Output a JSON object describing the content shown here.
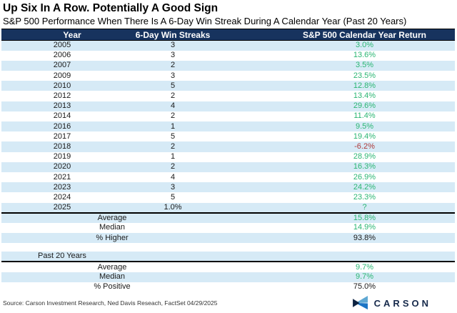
{
  "title": "Up Six In A Row. Potentially A Good Sign",
  "subtitle": "S&P 500 Performance When There Is A 6-Day Win Streak During A Calendar Year (Past 20 Years)",
  "table": {
    "columns": [
      "Year",
      "6-Day Win Streaks",
      "S&P 500 Calendar Year Return"
    ],
    "rows": [
      {
        "year": "2005",
        "streaks": "3",
        "ret": "3.0%",
        "color": "green",
        "shade": true
      },
      {
        "year": "2006",
        "streaks": "3",
        "ret": "13.6%",
        "color": "green",
        "shade": false
      },
      {
        "year": "2007",
        "streaks": "2",
        "ret": "3.5%",
        "color": "green",
        "shade": true
      },
      {
        "year": "2009",
        "streaks": "3",
        "ret": "23.5%",
        "color": "green",
        "shade": false
      },
      {
        "year": "2010",
        "streaks": "5",
        "ret": "12.8%",
        "color": "green",
        "shade": true
      },
      {
        "year": "2012",
        "streaks": "2",
        "ret": "13.4%",
        "color": "green",
        "shade": false
      },
      {
        "year": "2013",
        "streaks": "4",
        "ret": "29.6%",
        "color": "green",
        "shade": true
      },
      {
        "year": "2014",
        "streaks": "2",
        "ret": "11.4%",
        "color": "green",
        "shade": false
      },
      {
        "year": "2016",
        "streaks": "1",
        "ret": "9.5%",
        "color": "green",
        "shade": true
      },
      {
        "year": "2017",
        "streaks": "5",
        "ret": "19.4%",
        "color": "green",
        "shade": false
      },
      {
        "year": "2018",
        "streaks": "2",
        "ret": "-6.2%",
        "color": "red",
        "shade": true
      },
      {
        "year": "2019",
        "streaks": "1",
        "ret": "28.9%",
        "color": "green",
        "shade": false
      },
      {
        "year": "2020",
        "streaks": "2",
        "ret": "16.3%",
        "color": "green",
        "shade": true
      },
      {
        "year": "2021",
        "streaks": "4",
        "ret": "26.9%",
        "color": "green",
        "shade": false
      },
      {
        "year": "2023",
        "streaks": "3",
        "ret": "24.2%",
        "color": "green",
        "shade": true
      },
      {
        "year": "2024",
        "streaks": "5",
        "ret": "23.3%",
        "color": "green",
        "shade": false
      },
      {
        "year": "2025",
        "streaks": "1.0%",
        "ret": "?",
        "color": "green",
        "shade": true,
        "sep_below": true
      }
    ],
    "summary": [
      {
        "label": "Average",
        "value": "15.8%",
        "color": "green",
        "shade": true
      },
      {
        "label": "Median",
        "value": "14.9%",
        "color": "green",
        "shade": false
      },
      {
        "label": "% Higher",
        "value": "93.8%",
        "color": "dark",
        "shade": true
      }
    ],
    "past20_label": "Past 20 Years",
    "past20_rows": [
      {
        "label": "Average",
        "value": "9.7%",
        "color": "green",
        "shade": false
      },
      {
        "label": "Median",
        "value": "9.7%",
        "color": "green",
        "shade": true
      },
      {
        "label": "% Positive",
        "value": "75.0%",
        "color": "dark",
        "shade": false
      }
    ]
  },
  "source": "Source: Carson Investment Research, Ned Davis Reseach, FactSet 04/29/2025",
  "logo": {
    "text": "CARSON"
  },
  "colors": {
    "header_bg": "#17335E",
    "row_stripe": "#D6EAF6",
    "positive_green": "#2BB673",
    "negative_red": "#AF3A3A",
    "logo_navy": "#16294B",
    "logo_light_blue": "#5FA8D3",
    "logo_blue": "#1B74C4"
  },
  "chart_data": {
    "type": "table",
    "title": "Up Six In A Row. Potentially A Good Sign",
    "subtitle": "S&P 500 Performance When There Is A 6-Day Win Streak During A Calendar Year (Past 20 Years)",
    "columns": [
      "Year",
      "6-Day Win Streaks",
      "S&P 500 Calendar Year Return"
    ],
    "rows": [
      [
        "2005",
        "3",
        "3.0%"
      ],
      [
        "2006",
        "3",
        "13.6%"
      ],
      [
        "2007",
        "2",
        "3.5%"
      ],
      [
        "2009",
        "3",
        "23.5%"
      ],
      [
        "2010",
        "5",
        "12.8%"
      ],
      [
        "2012",
        "2",
        "13.4%"
      ],
      [
        "2013",
        "4",
        "29.6%"
      ],
      [
        "2014",
        "2",
        "11.4%"
      ],
      [
        "2016",
        "1",
        "9.5%"
      ],
      [
        "2017",
        "5",
        "19.4%"
      ],
      [
        "2018",
        "2",
        "-6.2%"
      ],
      [
        "2019",
        "1",
        "28.9%"
      ],
      [
        "2020",
        "2",
        "16.3%"
      ],
      [
        "2021",
        "4",
        "26.9%"
      ],
      [
        "2023",
        "3",
        "24.2%"
      ],
      [
        "2024",
        "5",
        "23.3%"
      ],
      [
        "2025",
        "1.0%",
        "?"
      ]
    ],
    "summary": {
      "average": "15.8%",
      "median": "14.9%",
      "pct_higher": "93.8%"
    },
    "past_20_years": {
      "average": "9.7%",
      "median": "9.7%",
      "pct_positive": "75.0%"
    }
  }
}
